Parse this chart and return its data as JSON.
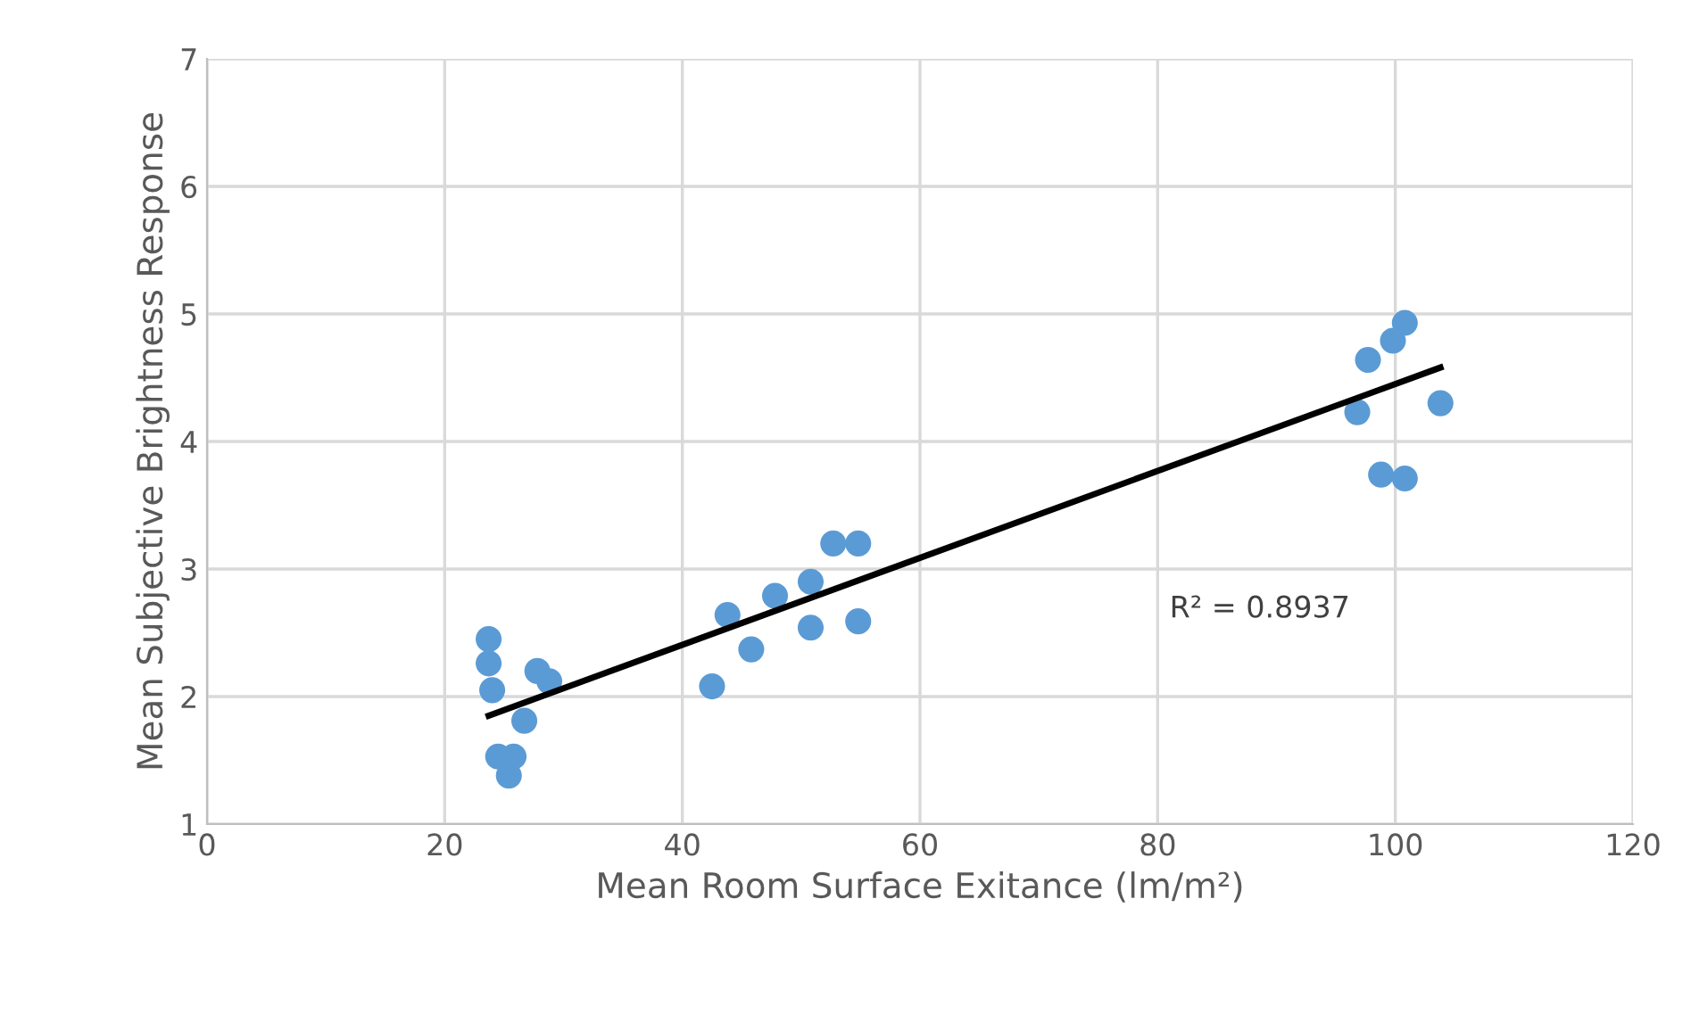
{
  "chart_data": {
    "type": "scatter",
    "xlabel": "Mean Room Surface Exitance (lm/m²)",
    "ylabel": "Mean Subjective Brightness Response",
    "x": [
      23.7,
      23.7,
      24.0,
      24.5,
      25.4,
      25.8,
      26.7,
      27.8,
      28.8,
      42.5,
      43.8,
      45.8,
      47.8,
      50.8,
      50.8,
      52.7,
      54.8,
      54.8,
      96.8,
      97.7,
      98.8,
      99.8,
      100.8,
      100.8,
      103.8
    ],
    "series": [
      {
        "marker": "circle",
        "color": "#5b9bd5",
        "values": [
          2.45,
          2.26,
          2.05,
          1.53,
          1.38,
          1.53,
          1.81,
          2.2,
          2.12,
          2.08,
          2.64,
          2.37,
          2.79,
          2.9,
          2.54,
          3.2,
          3.2,
          2.59,
          4.23,
          4.64,
          3.74,
          4.79,
          4.93,
          3.71,
          4.3
        ]
      },
      {
        "type": "line",
        "marker": "none",
        "color": "#000000",
        "x": [
          23.7,
          103.8
        ],
        "values": [
          1.85,
          4.58
        ]
      }
    ],
    "annotations": [
      "R² = 0.8937"
    ],
    "xlim": [
      0,
      120
    ],
    "xticks": [
      0,
      20,
      40,
      60,
      80,
      100,
      120
    ],
    "ylim": [
      1,
      7
    ],
    "yticks": [
      1,
      2,
      3,
      4,
      5,
      6,
      7
    ],
    "grid": true
  }
}
